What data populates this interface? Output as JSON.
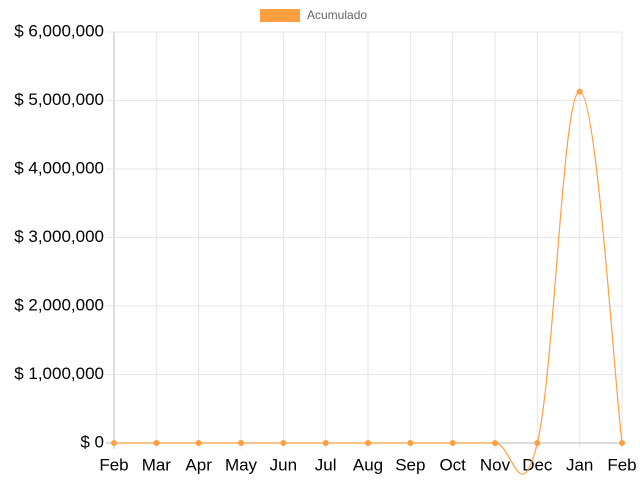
{
  "chart_data": {
    "type": "line",
    "categories": [
      "Feb",
      "Mar",
      "Apr",
      "May",
      "Jun",
      "Jul",
      "Aug",
      "Sep",
      "Oct",
      "Nov",
      "Dec",
      "Jan",
      "Feb"
    ],
    "series": [
      {
        "name": "Acumulado",
        "color": "#ff9f40",
        "values": [
          0,
          0,
          0,
          0,
          0,
          0,
          0,
          0,
          0,
          0,
          0,
          5130000,
          0
        ]
      }
    ],
    "ylim": [
      0,
      6000000
    ],
    "yticks": [
      {
        "value": 0,
        "label": "$ 0"
      },
      {
        "value": 1000000,
        "label": "$ 1,000,000"
      },
      {
        "value": 2000000,
        "label": "$ 2,000,000"
      },
      {
        "value": 3000000,
        "label": "$ 3,000,000"
      },
      {
        "value": 4000000,
        "label": "$ 4,000,000"
      },
      {
        "value": 5000000,
        "label": "$ 5,000,000"
      },
      {
        "value": 6000000,
        "label": "$ 6,000,000"
      }
    ],
    "grid": true,
    "legend": "top"
  }
}
